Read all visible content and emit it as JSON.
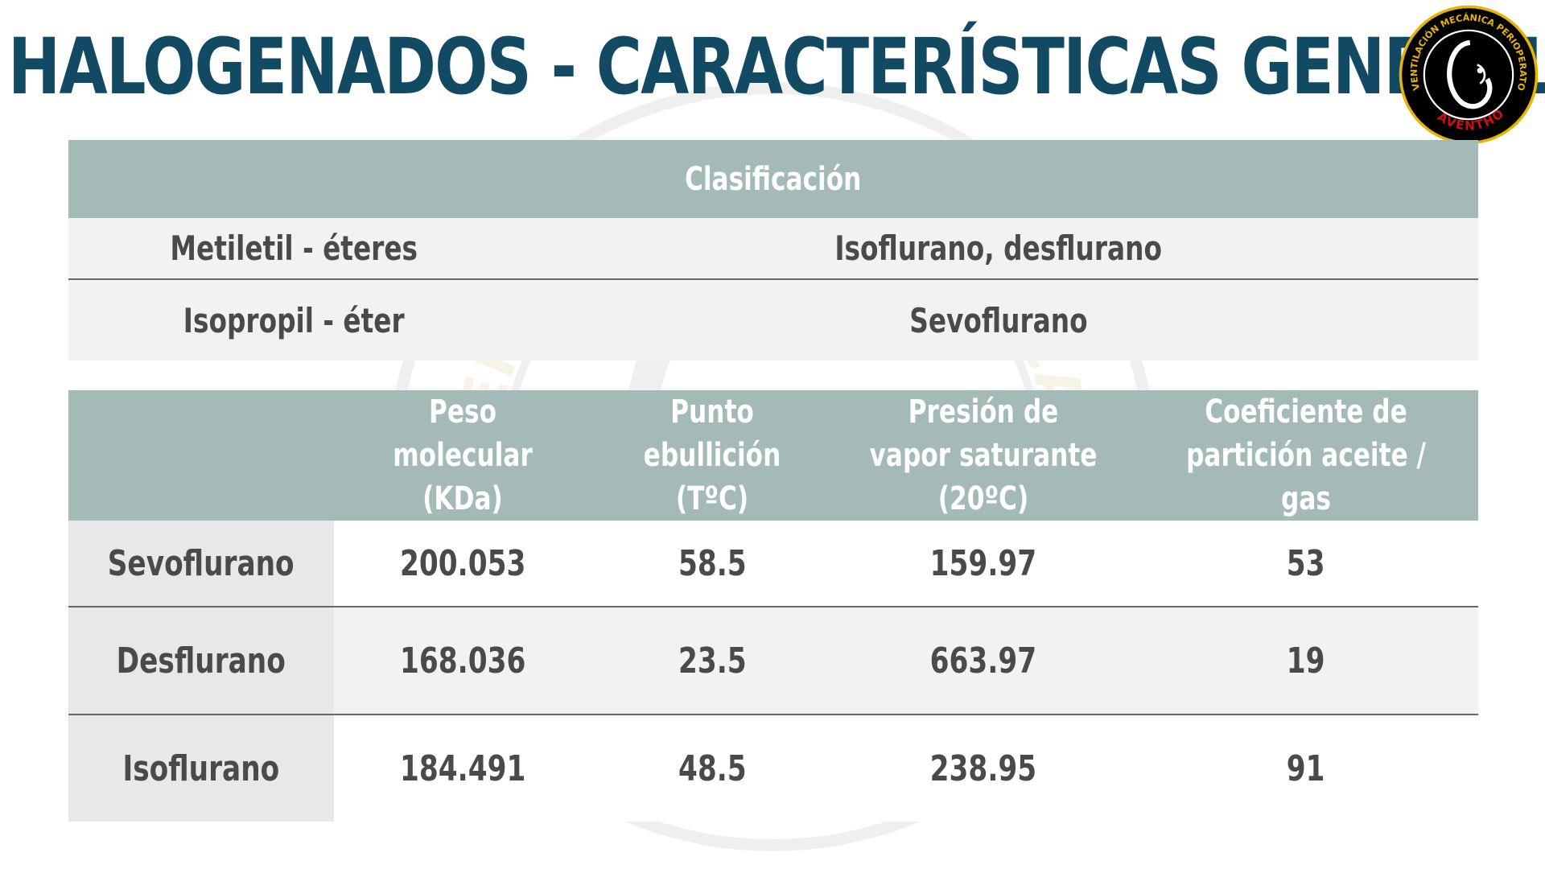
{
  "title": "HALOGENADOS - CARACTERÍSTICAS GENERALES",
  "logo": {
    "ring_text": "VENTILACIÓN MECÁNICA PERIOPERATORIA",
    "brand_text": "AVENTHO",
    "colors": {
      "ring": "#000000",
      "accent": "#e8b400",
      "brand": "#d01010"
    }
  },
  "classification_table": {
    "header": "Clasificación",
    "rows": [
      {
        "group": "Metiletil - éteres",
        "agents": "Isoflurano, desflurano"
      },
      {
        "group": "Isopropil - éter",
        "agents": "Sevoflurano"
      }
    ]
  },
  "properties_table": {
    "headers": [
      "",
      "Peso molecular (KDa)",
      "Punto ebullición (TºC)",
      "Presión de vapor saturante (20ºC)",
      "Coeficiente de partición aceite / gas"
    ],
    "rows": [
      {
        "agent": "Sevoflurano",
        "values": [
          "200.053",
          "58.5",
          "159.97",
          "53"
        ]
      },
      {
        "agent": "Desflurano",
        "values": [
          "168.036",
          "23.5",
          "663.97",
          "19"
        ]
      },
      {
        "agent": "Isoflurano",
        "values": [
          "184.491",
          "48.5",
          "238.95",
          "91"
        ]
      }
    ]
  },
  "colors": {
    "title": "#124a63",
    "table_header": "#a4bab9",
    "row_light": "#f2f2f2",
    "text": "#4a4a4a"
  }
}
